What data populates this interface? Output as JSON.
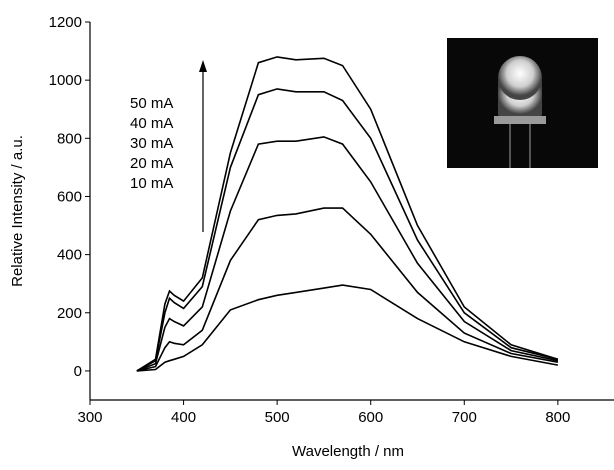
{
  "chart_data": {
    "type": "line",
    "x_label": "Wavelength / nm",
    "y_label": "Relative Intensity / a.u.",
    "x": [
      350,
      370,
      380,
      385,
      390,
      400,
      420,
      450,
      480,
      500,
      520,
      550,
      570,
      600,
      650,
      700,
      750,
      800
    ],
    "series": [
      {
        "name": "50 mA",
        "color": "#000000",
        "values": [
          0,
          40,
          230,
          275,
          260,
          240,
          320,
          750,
          1060,
          1080,
          1070,
          1075,
          1050,
          900,
          500,
          220,
          90,
          40
        ]
      },
      {
        "name": "40 mA",
        "color": "#000000",
        "values": [
          0,
          35,
          200,
          250,
          235,
          215,
          290,
          700,
          950,
          970,
          960,
          960,
          930,
          800,
          450,
          200,
          80,
          40
        ]
      },
      {
        "name": "30 mA",
        "color": "#000000",
        "values": [
          0,
          25,
          150,
          180,
          170,
          155,
          220,
          550,
          780,
          790,
          790,
          805,
          780,
          650,
          370,
          170,
          70,
          35
        ]
      },
      {
        "name": "20 mA",
        "color": "#000000",
        "values": [
          0,
          15,
          80,
          100,
          95,
          90,
          140,
          380,
          520,
          535,
          540,
          560,
          560,
          470,
          270,
          130,
          60,
          30
        ]
      },
      {
        "name": "10 mA",
        "color": "#000000",
        "values": [
          0,
          5,
          30,
          35,
          40,
          50,
          90,
          210,
          245,
          260,
          270,
          285,
          295,
          280,
          180,
          100,
          50,
          20
        ]
      }
    ],
    "xlim": [
      300,
      860
    ],
    "ylim": [
      -100,
      1200
    ],
    "xticks": [
      300,
      400,
      500,
      600,
      700,
      800
    ],
    "yticks": [
      0,
      200,
      400,
      600,
      800,
      1000,
      1200
    ]
  }
}
